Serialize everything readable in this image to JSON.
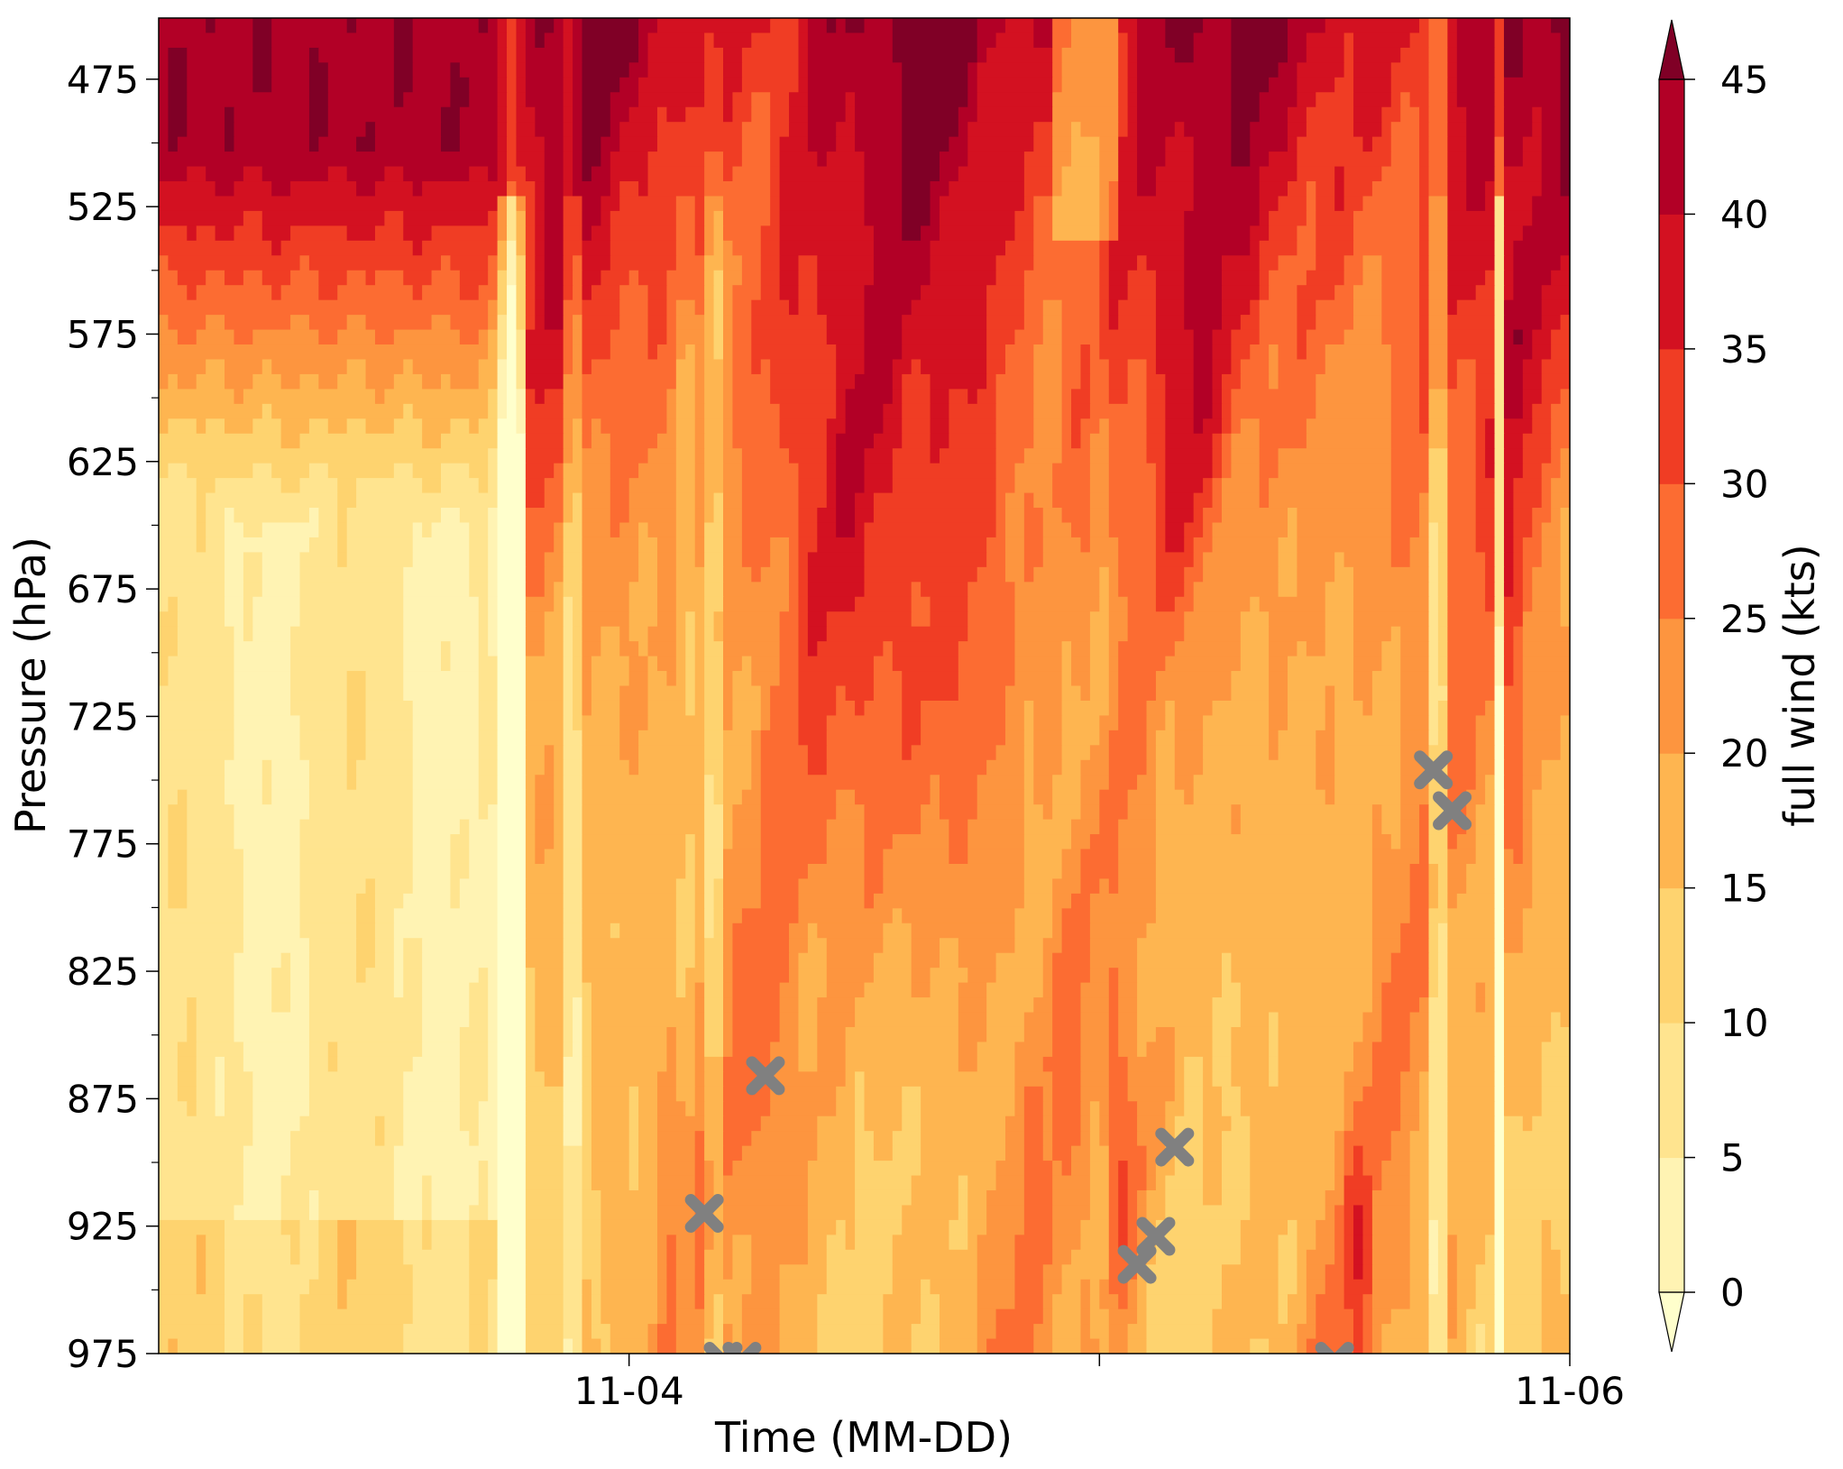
{
  "chart_data": {
    "type": "heatmap",
    "subtype": "filled-contour",
    "xlabel": "Time (MM-DD)",
    "ylabel": "Pressure (hPa)",
    "x_range_days": [
      2.0,
      5.0
    ],
    "x_ticks": [
      {
        "day": 4,
        "label": "11-04"
      },
      {
        "day": 5,
        "label": ""
      },
      {
        "day": 6,
        "label": "11-06"
      }
    ],
    "ylim": [
      975,
      451
    ],
    "y_ticks": [
      475,
      525,
      575,
      625,
      675,
      725,
      775,
      825,
      875,
      925,
      975
    ],
    "y_minor_ticks": [
      500,
      550,
      600,
      650,
      700,
      750,
      800,
      850,
      900,
      950
    ],
    "colorbar": {
      "label": "full wind (kts)",
      "levels": [
        0,
        5,
        10,
        15,
        20,
        25,
        30,
        35,
        40,
        45
      ],
      "colors": [
        "#ffffcc",
        "#fff3b3",
        "#ffe48f",
        "#fed36f",
        "#feb550",
        "#fd953f",
        "#fc6c32",
        "#f03d24",
        "#d31121",
        "#b20026",
        "#800026"
      ],
      "extend": "both"
    },
    "markers": [
      {
        "time_day": 4.16,
        "pressure": 920,
        "label": "X"
      },
      {
        "time_day": 4.2,
        "pressure": 978,
        "label": "X"
      },
      {
        "time_day": 4.24,
        "pressure": 978,
        "label": "X"
      },
      {
        "time_day": 4.29,
        "pressure": 866,
        "label": "X"
      },
      {
        "time_day": 5.08,
        "pressure": 940,
        "label": "X"
      },
      {
        "time_day": 5.12,
        "pressure": 929,
        "label": "X"
      },
      {
        "time_day": 5.16,
        "pressure": 894,
        "label": "X"
      },
      {
        "time_day": 5.5,
        "pressure": 978,
        "label": "X"
      },
      {
        "time_day": 5.71,
        "pressure": 746,
        "label": "X"
      },
      {
        "time_day": 5.75,
        "pressure": 762,
        "label": "X"
      }
    ]
  }
}
